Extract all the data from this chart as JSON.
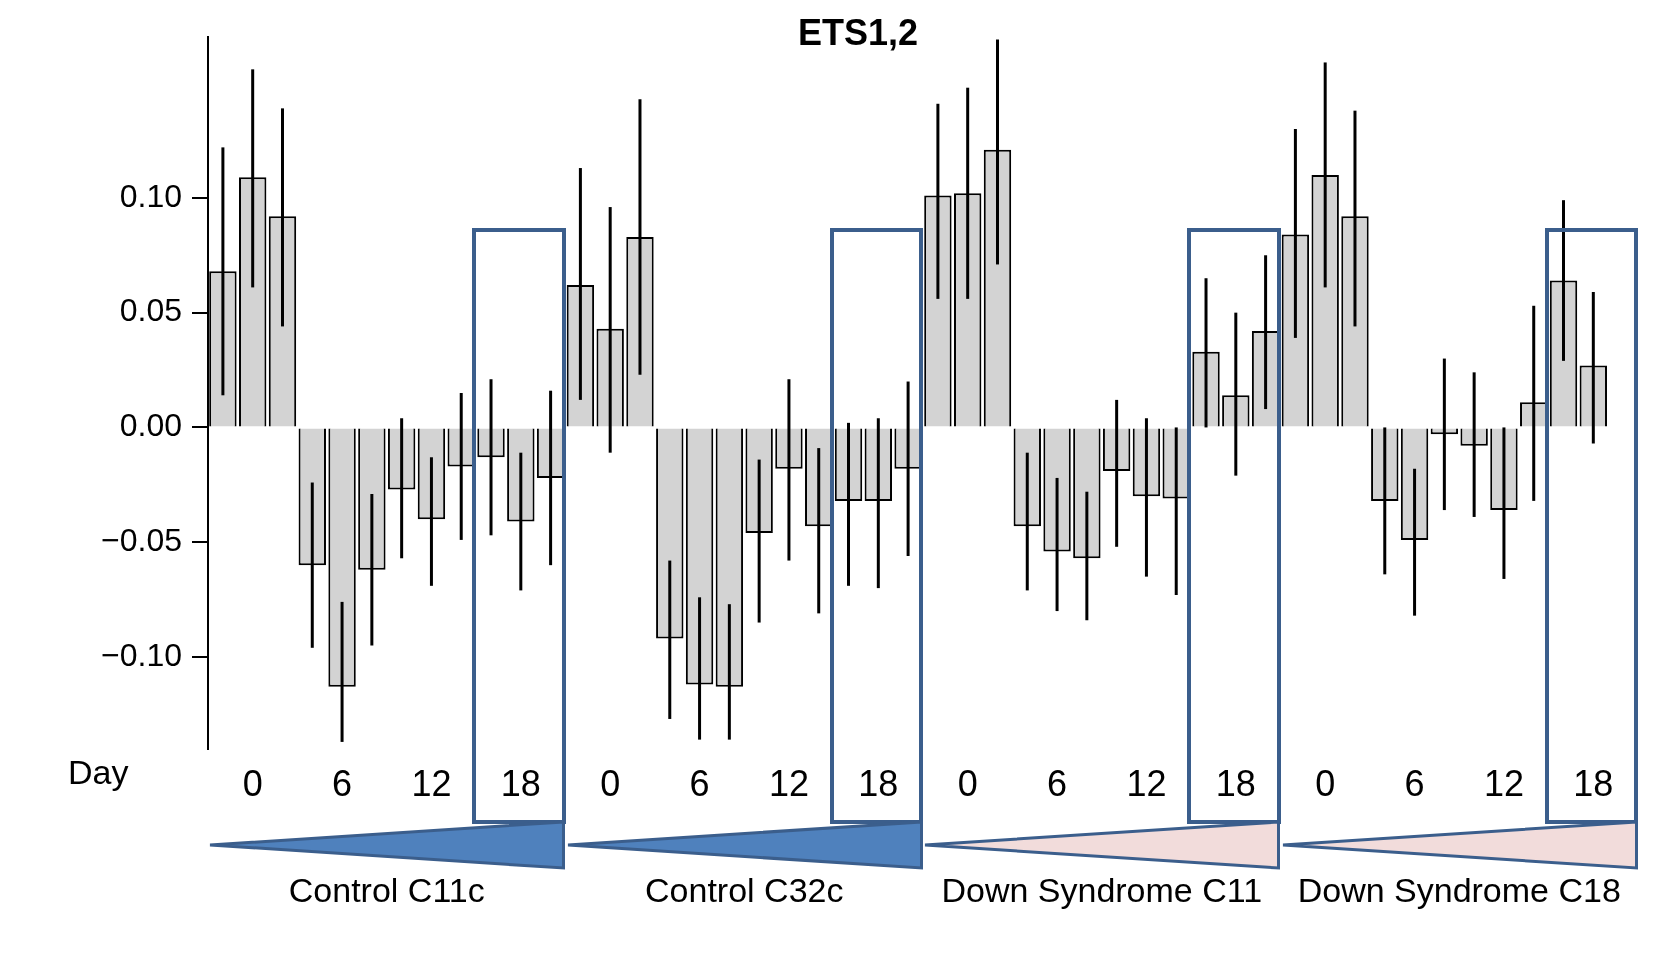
{
  "chart_data": {
    "type": "bar",
    "title": "ETS1,2",
    "categories": [
      null,
      "0",
      null,
      null,
      "6",
      null,
      null,
      "12",
      null,
      null,
      "18",
      null,
      null,
      "0",
      null,
      null,
      "6",
      null,
      null,
      "12",
      null,
      null,
      "18",
      null,
      null,
      "0",
      null,
      null,
      "6",
      null,
      null,
      "12",
      null,
      null,
      "18",
      null,
      null,
      "0",
      null,
      null,
      "6",
      null,
      null,
      "12",
      null,
      null,
      "18",
      null
    ],
    "values": [
      0.068,
      0.109,
      0.092,
      -0.06,
      -0.113,
      -0.062,
      -0.027,
      -0.04,
      -0.017,
      -0.013,
      -0.041,
      -0.022,
      0.062,
      0.043,
      0.083,
      -0.092,
      -0.112,
      -0.113,
      -0.046,
      -0.018,
      -0.043,
      -0.032,
      -0.032,
      -0.018,
      0.101,
      0.102,
      0.121,
      -0.043,
      -0.054,
      -0.057,
      -0.019,
      -0.03,
      -0.031,
      0.033,
      0.014,
      0.042,
      0.084,
      0.11,
      0.092,
      -0.032,
      -0.049,
      -0.003,
      -0.008,
      -0.036,
      0.011,
      0.064,
      0.027,
      null
    ],
    "errors": [
      [
        0.014,
        0.122
      ],
      [
        0.061,
        0.156
      ],
      [
        0.044,
        0.139
      ],
      [
        -0.096,
        -0.024
      ],
      [
        -0.137,
        -0.076
      ],
      [
        -0.095,
        -0.029
      ],
      [
        -0.057,
        0.004
      ],
      [
        -0.069,
        -0.013
      ],
      [
        -0.049,
        0.015
      ],
      [
        -0.047,
        0.021
      ],
      [
        -0.071,
        -0.011
      ],
      [
        -0.06,
        0.016
      ],
      [
        0.012,
        0.113
      ],
      [
        -0.011,
        0.096
      ],
      [
        0.023,
        0.143
      ],
      [
        -0.127,
        -0.058
      ],
      [
        -0.136,
        -0.074
      ],
      [
        -0.136,
        -0.077
      ],
      [
        -0.085,
        -0.014
      ],
      [
        -0.058,
        0.021
      ],
      [
        -0.081,
        -0.009
      ],
      [
        -0.069,
        0.002
      ],
      [
        -0.07,
        0.004
      ],
      [
        -0.056,
        0.02
      ],
      [
        0.056,
        0.141
      ],
      [
        0.056,
        0.148
      ],
      [
        0.071,
        0.169
      ],
      [
        -0.071,
        -0.011
      ],
      [
        -0.08,
        -0.022
      ],
      [
        -0.084,
        -0.028
      ],
      [
        -0.052,
        0.012
      ],
      [
        -0.065,
        0.004
      ],
      [
        -0.073,
        0.0
      ],
      [
        0.0,
        0.065
      ],
      [
        -0.021,
        0.05
      ],
      [
        0.008,
        0.075
      ],
      [
        0.039,
        0.13
      ],
      [
        0.061,
        0.159
      ],
      [
        0.044,
        0.138
      ],
      [
        -0.064,
        0.0
      ],
      [
        -0.082,
        -0.018
      ],
      [
        -0.036,
        0.03
      ],
      [
        -0.039,
        0.024
      ],
      [
        -0.066,
        0.0
      ],
      [
        -0.032,
        0.053
      ],
      [
        0.029,
        0.099
      ],
      [
        -0.007,
        0.059
      ],
      null
    ],
    "color": "#d3d3d3",
    "ylim": [
      -0.14,
      0.17
    ],
    "yticks": [
      {
        "value": -0.1,
        "label": "−0.10"
      },
      {
        "value": -0.05,
        "label": "−0.05"
      },
      {
        "value": 0,
        "label": "0.00"
      },
      {
        "value": 0.05,
        "label": "0.05"
      },
      {
        "value": 0.1,
        "label": "0.10"
      }
    ],
    "annotations": [
      "Day",
      "Control C11c",
      "Control C32c",
      "Down Syndrome C11",
      "Down Syndrome C18"
    ]
  }
}
